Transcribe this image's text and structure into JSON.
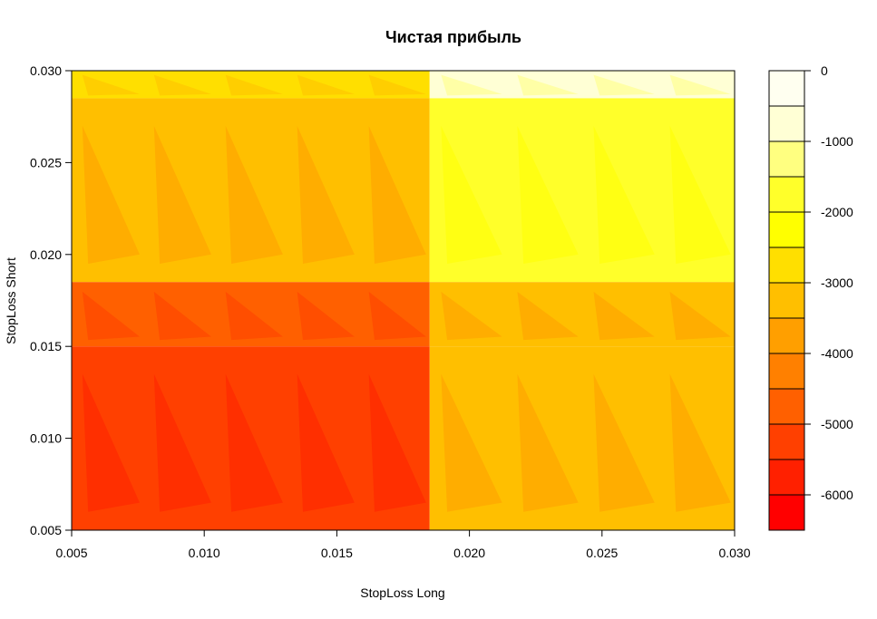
{
  "chart_data": {
    "type": "heatmap",
    "title": "Чистая прибыль",
    "xlabel": "StopLoss Long",
    "ylabel": "StopLoss Short",
    "xlim": [
      0.005,
      0.03
    ],
    "ylim": [
      0.005,
      0.03
    ],
    "x_ticks": [
      "0.005",
      "0.010",
      "0.015",
      "0.020",
      "0.025",
      "0.030"
    ],
    "y_ticks": [
      "0.005",
      "0.010",
      "0.015",
      "0.020",
      "0.025",
      "0.030"
    ],
    "x_tick_values": [
      0.005,
      0.01,
      0.015,
      0.02,
      0.025,
      0.03
    ],
    "y_tick_values": [
      0.005,
      0.01,
      0.015,
      0.02,
      0.025,
      0.03
    ],
    "colorbar": {
      "levels": [
        -6500,
        -6000,
        -5500,
        -5000,
        -4500,
        -4000,
        -3500,
        -3000,
        -2500,
        -2000,
        -1500,
        -1000,
        -500,
        0
      ],
      "tick_values": [
        0,
        -1000,
        -2000,
        -3000,
        -4000,
        -5000,
        -6000
      ],
      "tick_labels": [
        "0",
        "-1000",
        "-2000",
        "-3000",
        "-4000",
        "-5000",
        "-6000"
      ],
      "colors": [
        "#FF0000",
        "#FF2000",
        "#FF4000",
        "#FF6000",
        "#FF8000",
        "#FF9F00",
        "#FFBF00",
        "#FFDF00",
        "#FFFF00",
        "#FFFF2A",
        "#FFFF80",
        "#FFFFD5",
        "#FFFFF0"
      ]
    },
    "regions": [
      {
        "x": [
          0.005,
          0.0185
        ],
        "y": [
          0.0285,
          0.03
        ],
        "value": -2750
      },
      {
        "x": [
          0.005,
          0.0185
        ],
        "y": [
          0.0185,
          0.0285
        ],
        "value": -3300
      },
      {
        "x": [
          0.005,
          0.0185
        ],
        "y": [
          0.015,
          0.0185
        ],
        "value": -4800
      },
      {
        "x": [
          0.005,
          0.0185
        ],
        "y": [
          0.005,
          0.015
        ],
        "value": -5300
      },
      {
        "x": [
          0.0185,
          0.03
        ],
        "y": [
          0.0285,
          0.03
        ],
        "value": -750
      },
      {
        "x": [
          0.0185,
          0.03
        ],
        "y": [
          0.0185,
          0.0285
        ],
        "value": -1800
      },
      {
        "x": [
          0.0185,
          0.03
        ],
        "y": [
          0.015,
          0.0185
        ],
        "value": -3300
      },
      {
        "x": [
          0.0185,
          0.03
        ],
        "y": [
          0.005,
          0.015
        ],
        "value": -3500
      }
    ]
  }
}
